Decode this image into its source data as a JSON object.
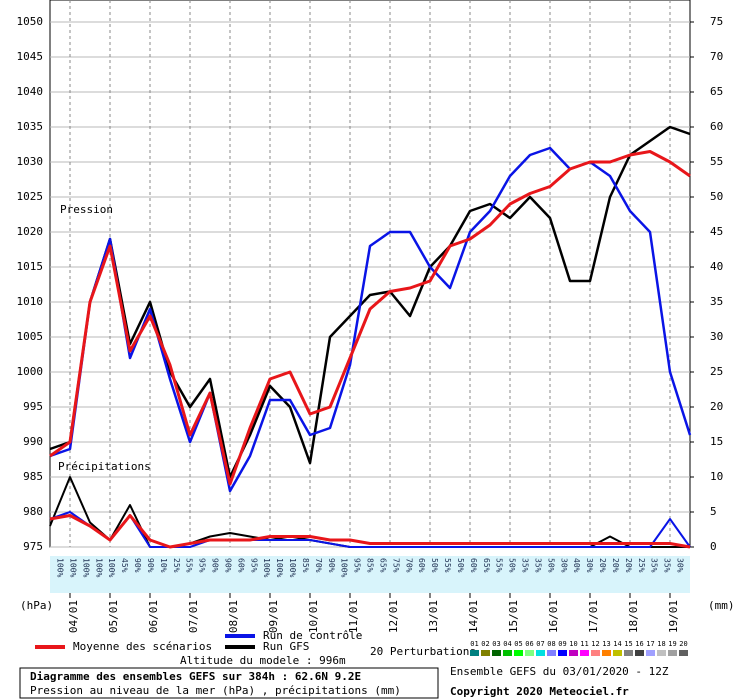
{
  "chart_data": {
    "type": "line",
    "labels": {
      "pressure": "Pression",
      "precip": "Précipitations",
      "left_unit": "(hPa)",
      "right_unit": "(mm)",
      "perturbations": "20 Perturbations",
      "altitude": "Altitude du modele : 996m"
    },
    "footer": {
      "title": "Diagramme des ensembles GEFS sur 384h : 62.6N 9.2E",
      "subtitle": "Pression au niveau de la mer (hPa) , précipitations (mm)",
      "run": "Ensemble GEFS du 03/01/2020 - 12Z",
      "copyright": "Copyright 2020 Meteociel.fr"
    },
    "categories": [
      null,
      "04/01",
      null,
      "05/01",
      null,
      "06/01",
      null,
      "07/01",
      null,
      "08/01",
      null,
      "09/01",
      null,
      "10/01",
      null,
      "11/01",
      null,
      "12/01",
      null,
      "13/01",
      null,
      "14/01",
      null,
      "15/01",
      null,
      "16/01",
      null,
      "17/01",
      null,
      "18/01",
      null,
      "19/01",
      null
    ],
    "ylim": [
      975,
      1050
    ],
    "yticks": [
      975,
      980,
      985,
      990,
      995,
      1000,
      1005,
      1010,
      1015,
      1020,
      1025,
      1030,
      1035,
      1040,
      1045,
      1050
    ],
    "y2lim": [
      0,
      75
    ],
    "y2ticks": [
      0,
      5,
      10,
      15,
      20,
      25,
      30,
      35,
      40,
      45,
      50,
      55,
      60,
      65,
      70,
      75
    ],
    "grid": true,
    "series": [
      {
        "name": "Moyenne des scénarios",
        "color": "#e8161a",
        "line_width": 3,
        "values": [
          988,
          990,
          1010,
          1018,
          1003,
          1008,
          1001,
          991,
          997,
          984,
          992,
          999,
          1000,
          994,
          995,
          1002,
          1009,
          1011.5,
          1012,
          1013,
          1018,
          1019,
          1021,
          1024,
          1025.5,
          1026.5,
          1029,
          1030,
          1030,
          1031,
          1031.5,
          1030,
          1028
        ]
      },
      {
        "name": "Run de contrôle",
        "color": "#0a14e6",
        "line_width": 2.5,
        "values": [
          988,
          989,
          1010,
          1019,
          1002,
          1009,
          999,
          990,
          997,
          983,
          988,
          996,
          996,
          991,
          992,
          1001,
          1018,
          1020,
          1020,
          1015,
          1012,
          1020,
          1023,
          1028,
          1031,
          1032,
          1029,
          1030,
          1028,
          1023,
          1020,
          1000,
          991
        ]
      },
      {
        "name": "Run GFS",
        "color": "#000000",
        "line_width": 2.5,
        "values": [
          989,
          990,
          1010,
          1019,
          1004,
          1010,
          1000,
          995,
          999,
          985,
          991,
          998,
          995,
          987,
          1005,
          1008,
          1011,
          1011.5,
          1008,
          1015,
          1018,
          1023,
          1024,
          1022,
          1025,
          1022,
          1013,
          1013,
          1025,
          1031,
          1033,
          1035,
          1034
        ]
      }
    ],
    "precip_series": [
      {
        "color": "#000000",
        "line_width": 2,
        "axis": "y2",
        "values": [
          3,
          10,
          3.5,
          1,
          6,
          0,
          0,
          0.5,
          1.5,
          2,
          1.5,
          1,
          1.5,
          1,
          0.5,
          0,
          0,
          0,
          0,
          0,
          0,
          0,
          0,
          0,
          0,
          0,
          0,
          0,
          1.5,
          0,
          0,
          0,
          0
        ]
      },
      {
        "color": "#0a14e6",
        "line_width": 2,
        "axis": "y2",
        "values": [
          4,
          5,
          3,
          1,
          4.5,
          0,
          0,
          0,
          1,
          1,
          1,
          1,
          1,
          1,
          0.5,
          0,
          0,
          0,
          0,
          0,
          0,
          0,
          0,
          0,
          0,
          0,
          0,
          0,
          0,
          0,
          0,
          4,
          0
        ]
      },
      {
        "color": "#e8161a",
        "line_width": 3,
        "axis": "y2",
        "values": [
          4,
          4.5,
          3,
          1,
          4.5,
          1,
          0,
          0.5,
          1,
          1,
          1,
          1.5,
          1.5,
          1.5,
          1,
          1,
          0.5,
          0.5,
          0.5,
          0.5,
          0.5,
          0.5,
          0.5,
          0.5,
          0.5,
          0.5,
          0.5,
          0.5,
          0.5,
          0.5,
          0.5,
          0.5,
          0
        ]
      }
    ],
    "perturbation_legend": [
      {
        "name": "01",
        "color": "#008080"
      },
      {
        "name": "02",
        "color": "#808000"
      },
      {
        "name": "03",
        "color": "#006400"
      },
      {
        "name": "04",
        "color": "#00c000"
      },
      {
        "name": "05",
        "color": "#00ff00"
      },
      {
        "name": "06",
        "color": "#80ff80"
      },
      {
        "name": "07",
        "color": "#00e0e0"
      },
      {
        "name": "08",
        "color": "#8080ff"
      },
      {
        "name": "09",
        "color": "#0000ff"
      },
      {
        "name": "10",
        "color": "#c000c0"
      },
      {
        "name": "11",
        "color": "#ff00ff"
      },
      {
        "name": "12",
        "color": "#ff8080"
      },
      {
        "name": "13",
        "color": "#ff8000"
      },
      {
        "name": "14",
        "color": "#c0c000"
      },
      {
        "name": "15",
        "color": "#808080"
      },
      {
        "name": "16",
        "color": "#404040"
      },
      {
        "name": "17",
        "color": "#a0a0ff"
      },
      {
        "name": "18",
        "color": "#c0c0c0"
      },
      {
        "name": "19",
        "color": "#a0a0a0"
      },
      {
        "name": "20",
        "color": "#606060"
      }
    ],
    "precip_probability": [
      "100%",
      "100%",
      "100%",
      "100%",
      "100%",
      "45%",
      "90%",
      "90%",
      "10%",
      "25%",
      "55%",
      "95%",
      "90%",
      "90%",
      "60%",
      "95%",
      "100%",
      "100%",
      "100%",
      "85%",
      "70%",
      "90%",
      "100%",
      "95%",
      "85%",
      "65%",
      "75%",
      "70%",
      "60%",
      "50%",
      "55%",
      "50%",
      "60%",
      "65%",
      "55%",
      "50%",
      "35%",
      "35%",
      "50%",
      "30%",
      "40%",
      "30%",
      "20%",
      "20%",
      "20%",
      "25%",
      "35%",
      "35%",
      "30%"
    ]
  }
}
